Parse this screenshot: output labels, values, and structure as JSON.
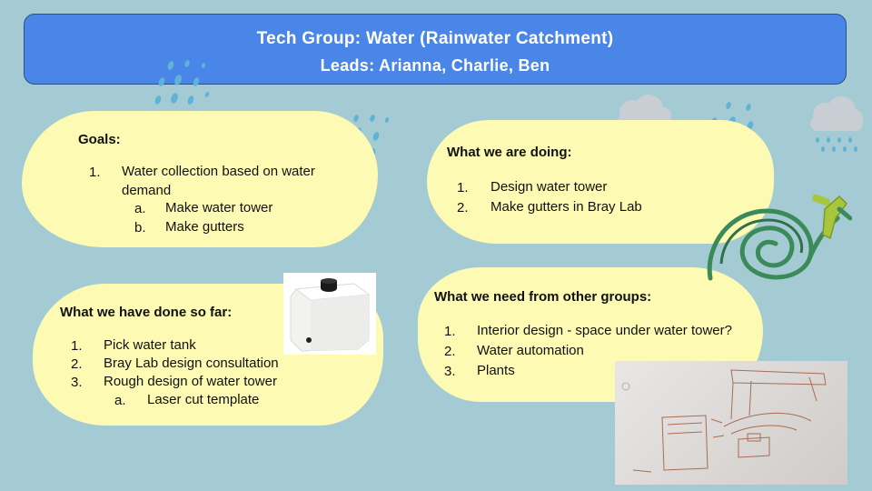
{
  "banner": {
    "title": "Tech Group: Water (Rainwater Catchment)",
    "leads": "Leads: Arianna, Charlie, Ben"
  },
  "goals": {
    "heading": "Goals:",
    "items": [
      {
        "num": "1.",
        "text": "Water collection based on water"
      },
      {
        "num": "",
        "text": "demand"
      },
      {
        "num": "a.",
        "text": "Make water tower"
      },
      {
        "num": "b.",
        "text": "Make gutters"
      }
    ]
  },
  "doing": {
    "heading": "What we are doing:",
    "items": [
      {
        "num": "1.",
        "text": "Design water tower"
      },
      {
        "num": "2.",
        "text": "Make gutters in Bray Lab"
      }
    ]
  },
  "done": {
    "heading": "What we have done so far:",
    "items": [
      {
        "num": "1.",
        "text": "Pick water tank"
      },
      {
        "num": "2.",
        "text": "Bray Lab design consultation"
      },
      {
        "num": "3.",
        "text": "Rough design of water tower"
      },
      {
        "num": "a.",
        "text": "Laser cut template"
      }
    ]
  },
  "need": {
    "heading": "What we need from other groups:",
    "items": [
      {
        "num": "1.",
        "text": "Interior design - space under water tower?"
      },
      {
        "num": "2.",
        "text": "Water automation"
      },
      {
        "num": "3.",
        "text": "Plants"
      }
    ]
  },
  "icons": [
    "rain-drops-icon",
    "rain-cloud-icon",
    "garden-hose-icon",
    "water-tank-photo",
    "whiteboard-sketch-photo"
  ],
  "colors": {
    "background": "#a4cbd3",
    "banner": "#4a86e8",
    "note": "#fdfbb3",
    "rain": "#5fb3d6",
    "cloud": "#c9cdd4",
    "hose": "#3b8a5a"
  }
}
